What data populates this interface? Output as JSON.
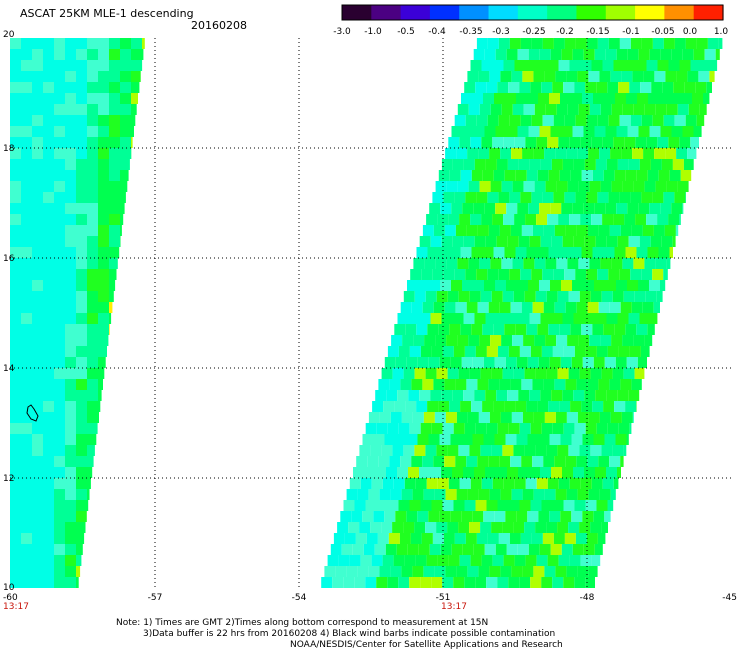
{
  "header": {
    "title": "ASCAT 25KM MLE-1 descending",
    "date": "20160208"
  },
  "colorbar": {
    "labels": [
      "-3.0",
      "-1.0",
      "-0.5",
      "-0.4",
      "-0.35",
      "-0.3",
      "-0.25",
      "-0.2",
      "-0.15",
      "-0.1",
      "-0.05",
      "0.0",
      "1.0"
    ],
    "colors": [
      "#2a0030",
      "#4b0082",
      "#3b00d8",
      "#0030ff",
      "#0090ff",
      "#00dcff",
      "#00ffc8",
      "#00ff80",
      "#30ff00",
      "#a0ff00",
      "#ffff00",
      "#ff9000",
      "#ff2000"
    ]
  },
  "axes": {
    "lon_labels": [
      "-60",
      "-57",
      "-54",
      "-51",
      "-48",
      "-45"
    ],
    "lat_labels": [
      "20",
      "18",
      "16",
      "14",
      "12",
      "10"
    ]
  },
  "pass_times": [
    "13:17",
    "13:17"
  ],
  "notes": [
    "Note: 1) Times are GMT 2)Times along bottom correspond to measurement at 15N",
    "3)Data buffer is 22 hrs from 20160208 4) Black wind barbs indicate possible contamination",
    "NOAA/NESDIS/Center for Satellite Applications and Research"
  ],
  "palette": {
    "cyan": "#00ffe6",
    "cyan_light": "#40ffd0",
    "aqua_green": "#00ff96",
    "green": "#00ff50",
    "bright_green": "#20ff20",
    "yellow_green": "#b0ff00",
    "yellow": "#ffee00",
    "orange": "#ff9600",
    "grid": "#000000",
    "time_label": "#c8140a"
  },
  "map_extent": {
    "lon": [
      -60,
      -45
    ],
    "lat": [
      10,
      20
    ]
  },
  "swaths": [
    {
      "name": "western-swath",
      "corners_lonlat": [
        [
          -60,
          20
        ],
        [
          -57.2,
          20
        ],
        [
          -58.6,
          10
        ],
        [
          -60,
          10
        ]
      ]
    },
    {
      "name": "eastern-swath",
      "corners_lonlat": [
        [
          -50.3,
          20
        ],
        [
          -45.2,
          20
        ],
        [
          -47.9,
          10
        ],
        [
          -53.6,
          10
        ]
      ]
    }
  ]
}
